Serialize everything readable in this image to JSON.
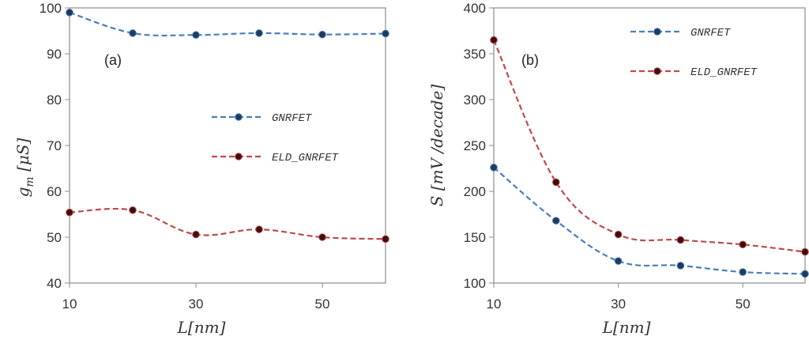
{
  "chart_data": [
    {
      "type": "line",
      "panel_label": "(a)",
      "xlabel": "L[nm]",
      "ylabel": "g_m [μS]",
      "ylabel_main": "g",
      "ylabel_sub": "m",
      "ylabel_unit": " [μS]",
      "xlim": [
        10,
        60
      ],
      "ylim": [
        40,
        100
      ],
      "x_ticks": [
        "10",
        "30",
        "50"
      ],
      "y_ticks": [
        "40",
        "50",
        "60",
        "70",
        "80",
        "90",
        "100"
      ],
      "grid": false,
      "legend_placement": "right",
      "series": [
        {
          "name": "GNRFET",
          "color": "#4a7ebb",
          "marker_color": "#1f3a5f",
          "x": [
            10,
            20,
            30,
            40,
            50,
            60
          ],
          "values": [
            99.0,
            94.5,
            94.1,
            94.5,
            94.2,
            94.4
          ]
        },
        {
          "name": "ELD_GNRFET",
          "color": "#be4b48",
          "marker_color": "#3d0f0f",
          "x": [
            10,
            20,
            30,
            40,
            50,
            60
          ],
          "values": [
            55.4,
            55.9,
            50.6,
            51.7,
            50.0,
            49.6
          ]
        }
      ]
    },
    {
      "type": "line",
      "panel_label": "(b)",
      "xlabel": "L[nm]",
      "ylabel": "S [mV /decade]",
      "xlim": [
        10,
        60
      ],
      "ylim": [
        100,
        400
      ],
      "x_ticks": [
        "10",
        "30",
        "50"
      ],
      "y_ticks": [
        "100",
        "150",
        "200",
        "250",
        "300",
        "350",
        "400"
      ],
      "grid": false,
      "legend_placement": "top-right",
      "series": [
        {
          "name": "GNRFET",
          "color": "#4a7ebb",
          "marker_color": "#1f3a5f",
          "x": [
            10,
            20,
            30,
            40,
            50,
            60
          ],
          "values": [
            226,
            168,
            124,
            119,
            112,
            110
          ]
        },
        {
          "name": "ELD_GNRFET",
          "color": "#be4b48",
          "marker_color": "#3d0f0f",
          "x": [
            10,
            20,
            30,
            40,
            50,
            60
          ],
          "values": [
            365,
            210,
            153,
            147,
            142,
            134
          ]
        }
      ]
    }
  ]
}
